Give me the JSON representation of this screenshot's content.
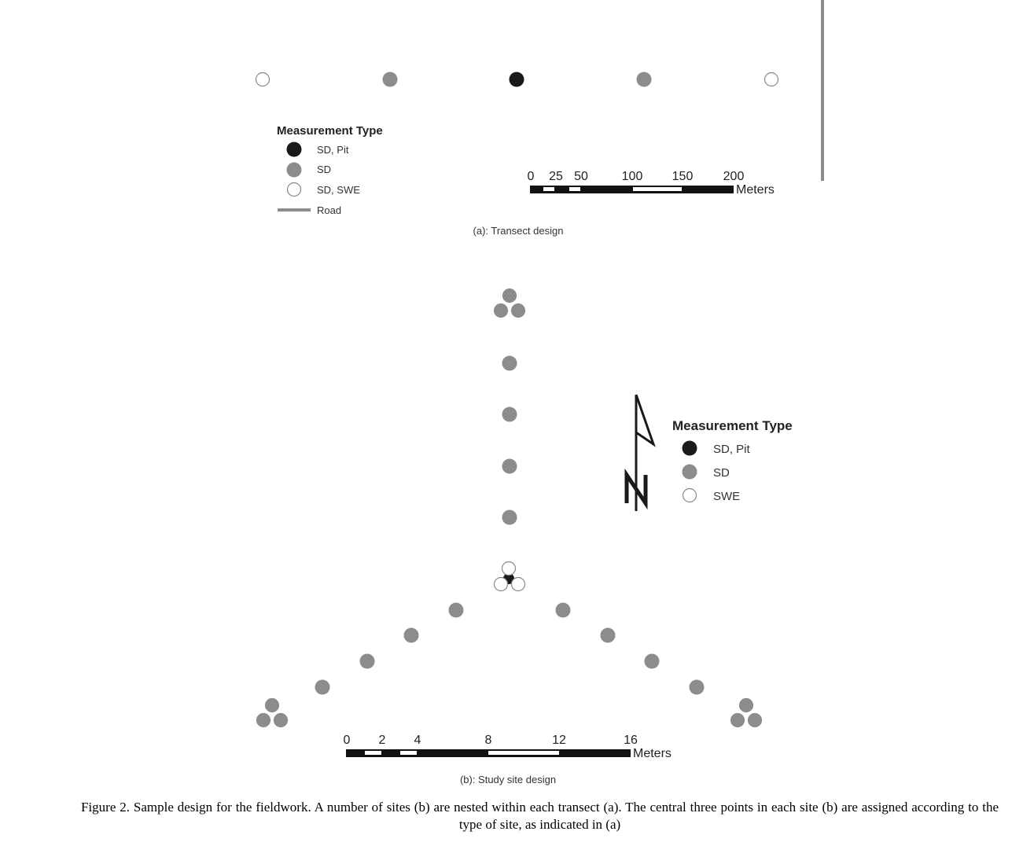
{
  "panel_a": {
    "legend_title": "Measurement Type",
    "legend_items": [
      {
        "label": "SD, Pit",
        "marker": "black-circle",
        "color": "#1a1a1a"
      },
      {
        "label": "SD",
        "marker": "gray-circle",
        "color": "#8c8c8c"
      },
      {
        "label": "SD, SWE",
        "marker": "white-circle",
        "color": "#ffffff"
      },
      {
        "label": "Road",
        "marker": "road-line",
        "color": "#8c8c8c"
      }
    ],
    "transect_points": [
      "SD, SWE",
      "SD",
      "SD, Pit",
      "SD",
      "SD, SWE"
    ],
    "scale_bar": {
      "tick_labels": [
        "0",
        "25",
        "50",
        "100",
        "150",
        "200"
      ],
      "unit": "Meters"
    },
    "subtitle": "(a): Transect design"
  },
  "panel_b": {
    "legend_title": "Measurement Type",
    "legend_items": [
      {
        "label": "SD, Pit",
        "marker": "black-circle",
        "color": "#1a1a1a"
      },
      {
        "label": "SD",
        "marker": "gray-circle",
        "color": "#8c8c8c"
      },
      {
        "label": "SWE",
        "marker": "white-circle",
        "color": "#ffffff"
      }
    ],
    "north_label": "N",
    "scale_bar": {
      "tick_labels": [
        "0",
        "2",
        "4",
        "8",
        "12",
        "16"
      ],
      "unit": "Meters"
    },
    "subtitle": "(b): Study site design"
  },
  "caption": "Figure 2. Sample design for the fieldwork. A number of sites (b) are nested within each transect (a). The central three points in each site (b) are assigned according to the type of site, as indicated in (a)"
}
